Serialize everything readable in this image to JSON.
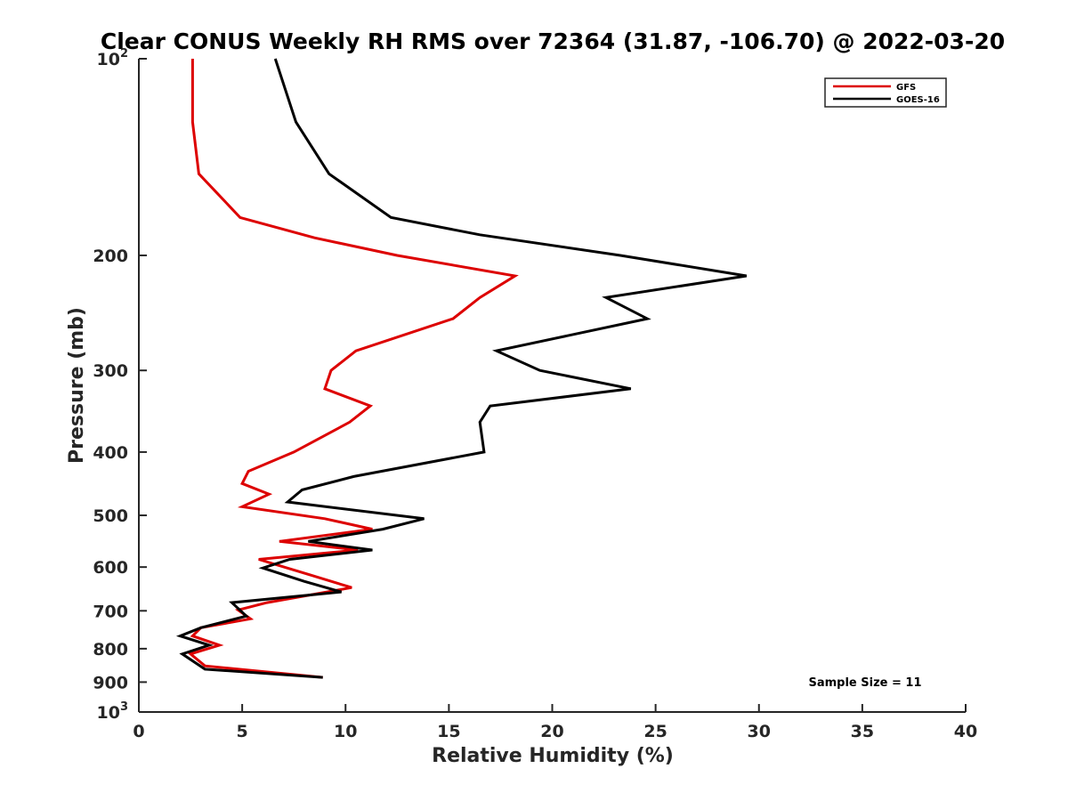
{
  "chart_data": {
    "type": "line",
    "title": "Clear CONUS Weekly RH RMS over 72364 (31.87, -106.70) @ 2022-03-20",
    "xlabel": "Relative Humidity (%)",
    "ylabel": "Pressure (mb)",
    "xlim": [
      0,
      40
    ],
    "ylim": [
      100,
      1000
    ],
    "y_scale": "log",
    "y_reversed": true,
    "grid": false,
    "legend_position": "top-right",
    "x_ticks": [
      0,
      5,
      10,
      15,
      20,
      25,
      30,
      35,
      40
    ],
    "x_tick_labels": [
      "0",
      "5",
      "10",
      "15",
      "20",
      "25",
      "30",
      "35",
      "40"
    ],
    "y_ticks": [
      100,
      200,
      300,
      400,
      500,
      600,
      700,
      800,
      900,
      1000
    ],
    "y_tick_labels": [
      {
        "base": "10",
        "sup": "2"
      },
      {
        "base": "200",
        "sup": ""
      },
      {
        "base": "300",
        "sup": ""
      },
      {
        "base": "400",
        "sup": ""
      },
      {
        "base": "500",
        "sup": ""
      },
      {
        "base": "600",
        "sup": ""
      },
      {
        "base": "700",
        "sup": ""
      },
      {
        "base": "800",
        "sup": ""
      },
      {
        "base": "900",
        "sup": ""
      },
      {
        "base": "10",
        "sup": "3"
      }
    ],
    "annotation": "Sample Size = 11",
    "series": [
      {
        "name": "GFS",
        "color": "#dd0000",
        "points": [
          [
            2.6,
            100
          ],
          [
            2.6,
            125
          ],
          [
            2.9,
            150
          ],
          [
            4.9,
            175
          ],
          [
            8.5,
            188
          ],
          [
            12.5,
            200
          ],
          [
            18.2,
            215
          ],
          [
            16.5,
            232
          ],
          [
            15.2,
            250
          ],
          [
            10.5,
            280
          ],
          [
            9.3,
            300
          ],
          [
            9.0,
            320
          ],
          [
            11.2,
            340
          ],
          [
            10.2,
            360
          ],
          [
            7.5,
            400
          ],
          [
            5.3,
            428
          ],
          [
            5.0,
            447
          ],
          [
            6.3,
            464
          ],
          [
            5.0,
            485
          ],
          [
            9.0,
            506
          ],
          [
            11.3,
            525
          ],
          [
            6.8,
            548
          ],
          [
            10.6,
            565
          ],
          [
            5.8,
            584
          ],
          [
            8.3,
            617
          ],
          [
            10.3,
            645
          ],
          [
            6.2,
            680
          ],
          [
            4.8,
            698
          ],
          [
            5.4,
            720
          ],
          [
            3.0,
            743
          ],
          [
            2.6,
            765
          ],
          [
            3.9,
            790
          ],
          [
            2.5,
            815
          ],
          [
            3.2,
            850
          ],
          [
            8.9,
            885
          ]
        ]
      },
      {
        "name": "GOES-16",
        "color": "#000000",
        "points": [
          [
            6.6,
            100
          ],
          [
            7.6,
            125
          ],
          [
            9.2,
            150
          ],
          [
            12.2,
            175
          ],
          [
            16.5,
            186
          ],
          [
            23.3,
            200
          ],
          [
            29.4,
            215
          ],
          [
            22.6,
            232
          ],
          [
            24.6,
            250
          ],
          [
            17.3,
            280
          ],
          [
            19.4,
            300
          ],
          [
            23.8,
            320
          ],
          [
            17.0,
            340
          ],
          [
            16.5,
            360
          ],
          [
            16.7,
            400
          ],
          [
            10.4,
            436
          ],
          [
            7.9,
            457
          ],
          [
            7.2,
            477
          ],
          [
            13.8,
            506
          ],
          [
            11.8,
            525
          ],
          [
            8.2,
            548
          ],
          [
            11.3,
            565
          ],
          [
            7.3,
            584
          ],
          [
            6.0,
            602
          ],
          [
            8.0,
            631
          ],
          [
            9.8,
            655
          ],
          [
            4.5,
            680
          ],
          [
            5.2,
            713
          ],
          [
            3.0,
            743
          ],
          [
            2.0,
            765
          ],
          [
            3.4,
            790
          ],
          [
            2.1,
            815
          ],
          [
            3.2,
            860
          ],
          [
            8.9,
            885
          ]
        ]
      }
    ]
  }
}
